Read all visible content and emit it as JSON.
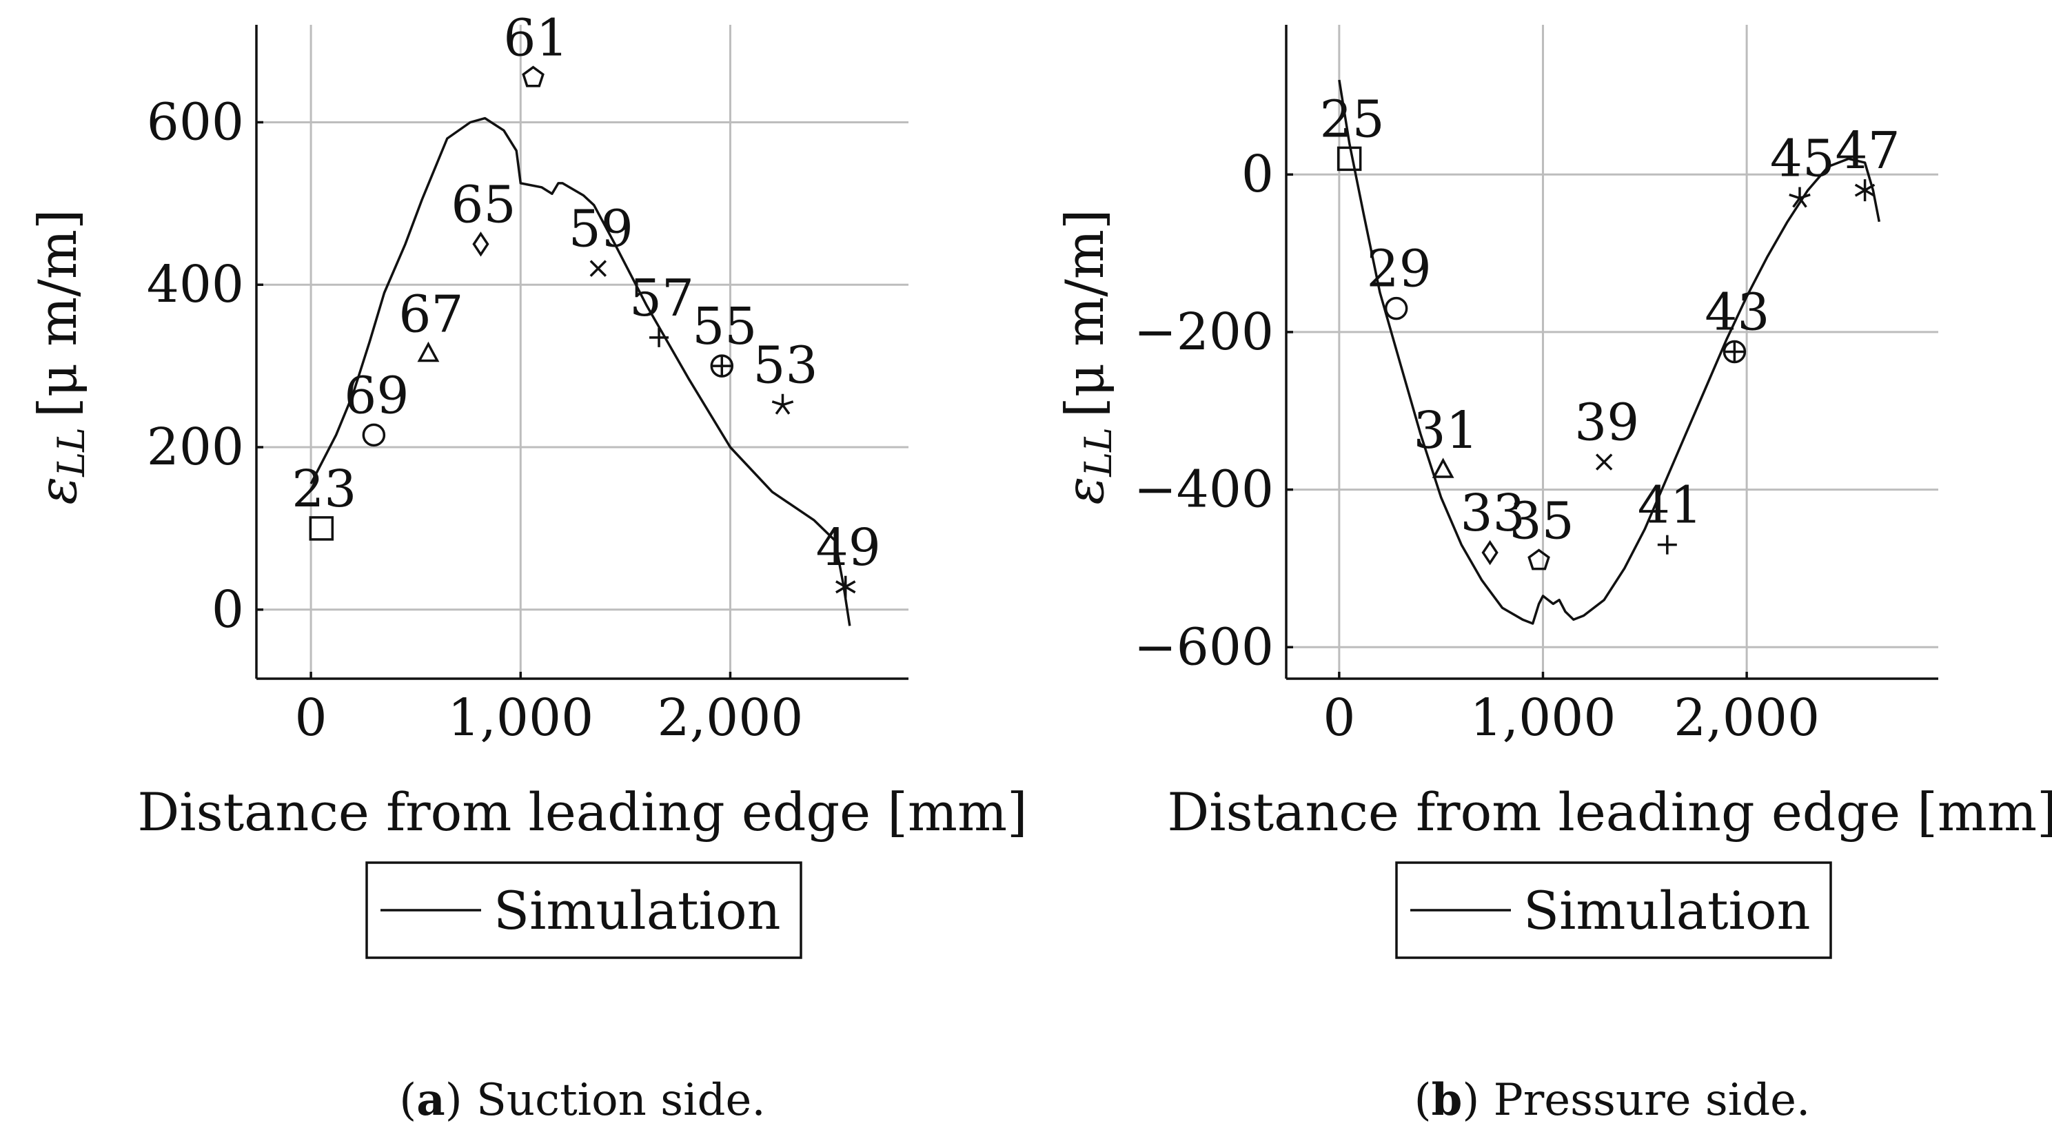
{
  "chart_data": [
    {
      "type": "line",
      "panel_id": "a",
      "caption_letter": "a",
      "caption_text": "Suction side.",
      "xlabel": "Distance from leading edge [mm]",
      "ylabel_symbol": "ε",
      "ylabel_subscript": "LL",
      "ylabel_unit": "[μ m/m]",
      "xlim": [
        -260,
        2850
      ],
      "ylim": [
        -85,
        720
      ],
      "xticks": [
        0,
        1000,
        2000
      ],
      "xtick_labels": [
        "0",
        "1,000",
        "2,000"
      ],
      "yticks": [
        0,
        200,
        400,
        600
      ],
      "ytick_labels": [
        "0",
        "200",
        "400",
        "600"
      ],
      "grid": true,
      "legend": {
        "label": "Simulation",
        "placement": "below"
      },
      "series": [
        {
          "name": "Simulation",
          "x": [
            0,
            120,
            200,
            280,
            350,
            450,
            530,
            650,
            760,
            830,
            920,
            980,
            1000,
            1100,
            1150,
            1180,
            1200,
            1300,
            1350,
            1450,
            1600,
            1800,
            2000,
            2200,
            2400,
            2500,
            2540,
            2570
          ],
          "y": [
            155,
            215,
            265,
            330,
            390,
            450,
            505,
            580,
            600,
            605,
            590,
            565,
            525,
            520,
            512,
            525,
            525,
            510,
            498,
            450,
            375,
            285,
            200,
            145,
            110,
            85,
            30,
            -20
          ]
        }
      ],
      "points": [
        {
          "label": "23",
          "marker": "square",
          "x": 50,
          "y": 100
        },
        {
          "label": "69",
          "marker": "circle",
          "x": 300,
          "y": 215
        },
        {
          "label": "67",
          "marker": "triangle",
          "x": 560,
          "y": 315
        },
        {
          "label": "65",
          "marker": "diamond",
          "x": 810,
          "y": 450
        },
        {
          "label": "61",
          "marker": "pentagon",
          "x": 1060,
          "y": 655
        },
        {
          "label": "59",
          "marker": "cross",
          "x": 1370,
          "y": 420
        },
        {
          "label": "57",
          "marker": "plus",
          "x": 1660,
          "y": 335
        },
        {
          "label": "55",
          "marker": "oplus",
          "x": 1960,
          "y": 300
        },
        {
          "label": "53",
          "marker": "star",
          "x": 2250,
          "y": 252
        },
        {
          "label": "49",
          "marker": "asterisk",
          "x": 2550,
          "y": 28
        }
      ]
    },
    {
      "type": "line",
      "panel_id": "b",
      "caption_letter": "b",
      "caption_text": "Pressure side.",
      "xlabel": "Distance from leading edge [mm]",
      "ylabel_symbol": "ε",
      "ylabel_subscript": "LL",
      "ylabel_unit": "[μ m/m]",
      "xlim": [
        -260,
        2940
      ],
      "ylim": [
        -640,
        190
      ],
      "xticks": [
        0,
        1000,
        2000
      ],
      "xtick_labels": [
        "0",
        "1,000",
        "2,000"
      ],
      "yticks": [
        -600,
        -400,
        -200,
        0
      ],
      "ytick_labels": [
        "−600",
        "−400",
        "−200",
        "0"
      ],
      "grid": true,
      "legend": {
        "label": "Simulation",
        "placement": "below"
      },
      "series": [
        {
          "name": "Simulation",
          "x": [
            0,
            50,
            120,
            200,
            300,
            400,
            500,
            600,
            700,
            800,
            900,
            950,
            980,
            1000,
            1050,
            1080,
            1110,
            1150,
            1200,
            1300,
            1400,
            1500,
            1600,
            1700,
            1800,
            1900,
            2000,
            2100,
            2200,
            2300,
            2400,
            2500,
            2580,
            2620,
            2650
          ],
          "y": [
            120,
            40,
            -50,
            -150,
            -240,
            -330,
            -410,
            -470,
            -515,
            -550,
            -565,
            -570,
            -545,
            -535,
            -545,
            -540,
            -555,
            -565,
            -560,
            -540,
            -500,
            -450,
            -390,
            -330,
            -270,
            -210,
            -155,
            -105,
            -60,
            -20,
            10,
            20,
            15,
            -20,
            -60
          ]
        }
      ],
      "points": [
        {
          "label": "25",
          "marker": "square",
          "x": 50,
          "y": 20
        },
        {
          "label": "29",
          "marker": "circle",
          "x": 280,
          "y": -170
        },
        {
          "label": "31",
          "marker": "triangle",
          "x": 510,
          "y": -375
        },
        {
          "label": "33",
          "marker": "diamond",
          "x": 740,
          "y": -480
        },
        {
          "label": "35",
          "marker": "pentagon",
          "x": 980,
          "y": -490
        },
        {
          "label": "39",
          "marker": "cross",
          "x": 1300,
          "y": -365
        },
        {
          "label": "41",
          "marker": "plus",
          "x": 1610,
          "y": -470
        },
        {
          "label": "43",
          "marker": "oplus",
          "x": 1940,
          "y": -225
        },
        {
          "label": "45",
          "marker": "star",
          "x": 2260,
          "y": -30
        },
        {
          "label": "47",
          "marker": "asterisk",
          "x": 2580,
          "y": -20
        }
      ]
    }
  ]
}
